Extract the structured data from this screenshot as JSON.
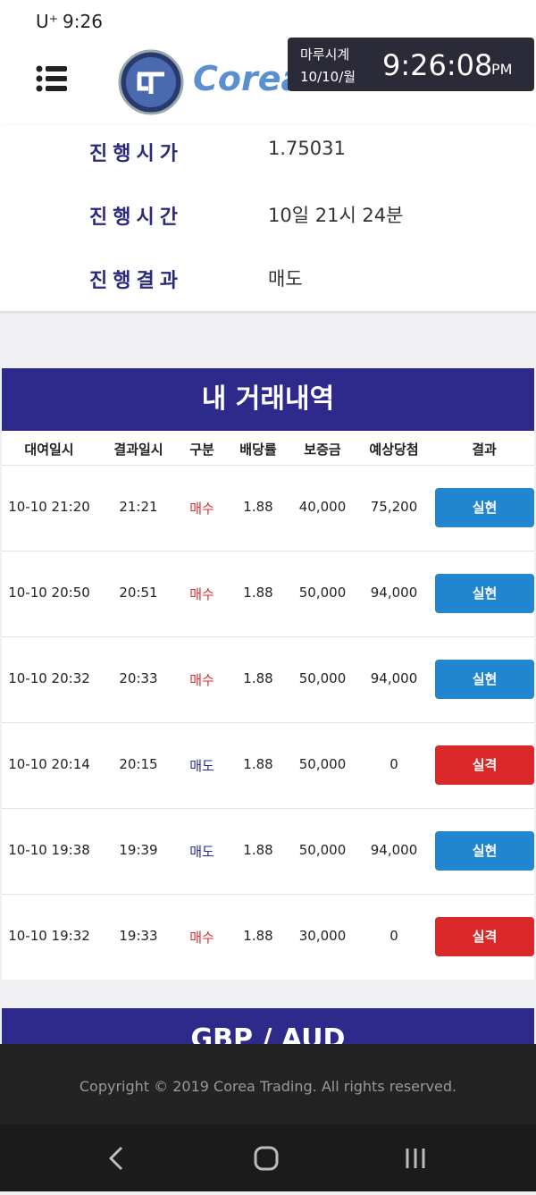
{
  "status_bar": {
    "carrier": "U⁺",
    "time": "9:26"
  },
  "clock_overlay": {
    "name": "마루시계",
    "date": "10/10/월",
    "time": "9:26:08",
    "ampm": "PM"
  },
  "header": {
    "logo_text": "Corea"
  },
  "info": [
    {
      "label": "진행시가",
      "value": "1.75031"
    },
    {
      "label": "진행시간",
      "value": "10일 21시 24분"
    },
    {
      "label": "진행결과",
      "value": "매도"
    }
  ],
  "history": {
    "title": "내 거래내역",
    "columns": [
      "대여일시",
      "결과일시",
      "구분",
      "배당률",
      "보증금",
      "예상당첨",
      "결과"
    ],
    "rows": [
      {
        "rent_time": "10-10 21:20",
        "result_time": "21:21",
        "kind": "매수",
        "kind_color": "#d32f2f",
        "rate": "1.88",
        "deposit": "40,000",
        "expected": "75,200",
        "result": "실현",
        "result_color": "#2185d0"
      },
      {
        "rent_time": "10-10 20:50",
        "result_time": "20:51",
        "kind": "매수",
        "kind_color": "#d32f2f",
        "rate": "1.88",
        "deposit": "50,000",
        "expected": "94,000",
        "result": "실현",
        "result_color": "#2185d0"
      },
      {
        "rent_time": "10-10 20:32",
        "result_time": "20:33",
        "kind": "매수",
        "kind_color": "#d32f2f",
        "rate": "1.88",
        "deposit": "50,000",
        "expected": "94,000",
        "result": "실현",
        "result_color": "#2185d0"
      },
      {
        "rent_time": "10-10 20:14",
        "result_time": "20:15",
        "kind": "매도",
        "kind_color": "#2a2a8c",
        "rate": "1.88",
        "deposit": "50,000",
        "expected": "0",
        "result": "실격",
        "result_color": "#db2828"
      },
      {
        "rent_time": "10-10 19:38",
        "result_time": "19:39",
        "kind": "매도",
        "kind_color": "#2a2a8c",
        "rate": "1.88",
        "deposit": "50,000",
        "expected": "94,000",
        "result": "실현",
        "result_color": "#2185d0"
      },
      {
        "rent_time": "10-10 19:32",
        "result_time": "19:33",
        "kind": "매수",
        "kind_color": "#d32f2f",
        "rate": "1.88",
        "deposit": "30,000",
        "expected": "0",
        "result": "실격",
        "result_color": "#db2828"
      }
    ]
  },
  "next_section": {
    "title": "GBP / AUD"
  },
  "footer": {
    "copyright": "Copyright © 2019 Corea Trading. All rights reserved."
  }
}
